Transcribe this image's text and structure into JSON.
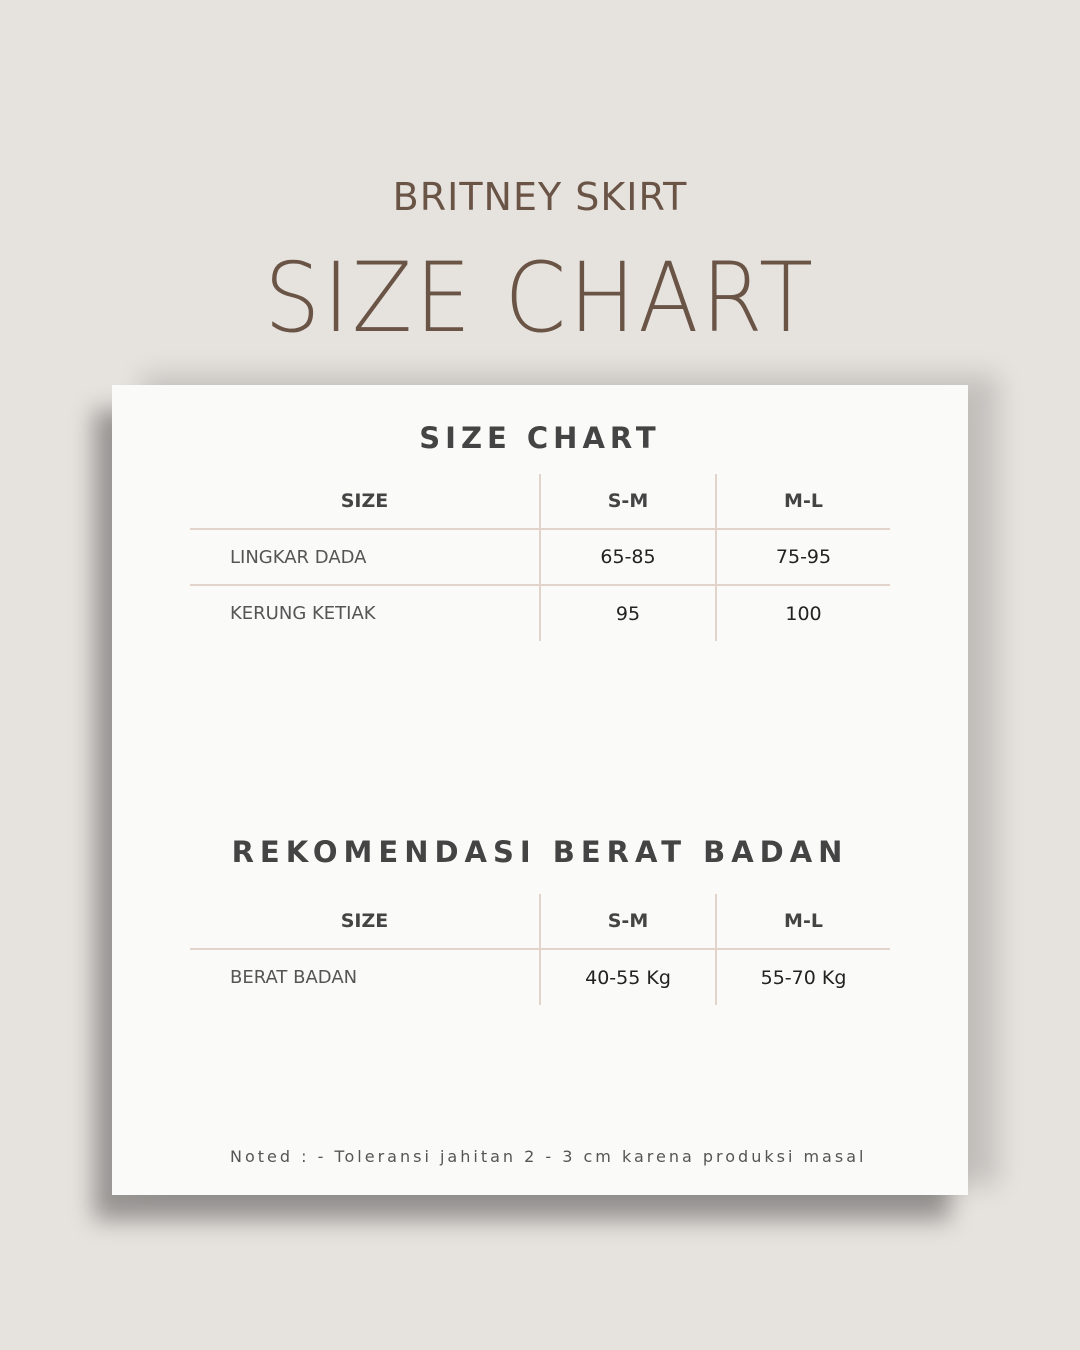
{
  "header": {
    "subtitle": "BRITNEY SKIRT",
    "title": "SIZE CHART"
  },
  "size_chart": {
    "heading": "SIZE CHART",
    "columns": [
      "SIZE",
      "S-M",
      "M-L"
    ],
    "rows": [
      [
        "LINGKAR DADA",
        "65-85",
        "75-95"
      ],
      [
        "KERUNG KETIAK",
        "95",
        "100"
      ]
    ]
  },
  "weight": {
    "heading": "REKOMENDASI BERAT BADAN",
    "columns": [
      "SIZE",
      "S-M",
      "M-L"
    ],
    "rows": [
      [
        "BERAT BADAN",
        "40-55 Kg",
        "55-70 Kg"
      ]
    ]
  },
  "note": "Noted :  - Toleransi jahitan 2 - 3 cm karena produksi masal"
}
